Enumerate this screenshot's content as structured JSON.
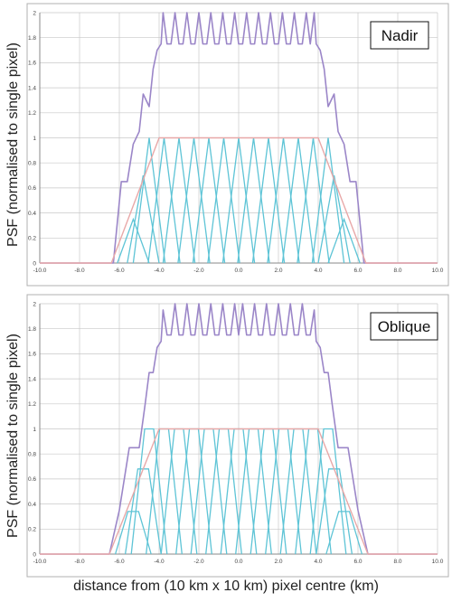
{
  "xlabel": "distance from (10 km x 10 km) pixel centre (km)",
  "ylabel": "PSF (normalised to single pixel)",
  "colors": {
    "sum": "#9b86c8",
    "envelope": "#e8a8a8",
    "footprints": "#5ec4d6",
    "grid": "#c8c8c8",
    "axis": "#888888",
    "frame": "#b0b0b0"
  },
  "chart_data": [
    {
      "type": "line",
      "title": "",
      "annotation": "Nadir",
      "xlim": [
        -10,
        10
      ],
      "ylim": [
        0,
        2
      ],
      "x_ticks": [
        "-10.0",
        "-8.0",
        "-6.0",
        "-4.0",
        "-2.0",
        "0.0",
        "2.0",
        "4.0",
        "6.0",
        "8.0",
        "10.0"
      ],
      "y_ticks": [
        "0",
        "0.2",
        "0.4",
        "0.6",
        "0.8",
        "1",
        "1.2",
        "1.4",
        "1.6",
        "1.8",
        "2"
      ],
      "grid": true,
      "footprint_model": {
        "pixel_centres": [
          -4.5,
          -3.75,
          -3,
          -2.25,
          -1.5,
          -0.75,
          0,
          0.75,
          1.5,
          2.25,
          3,
          3.75,
          4.5
        ],
        "shape": "triangle",
        "half_width": 0.8,
        "edge_factor": 0.35
      },
      "series": [
        {
          "role": "sum",
          "x": [
            -10,
            -6.3,
            -5.9,
            -5.6,
            -5.3,
            -5.0,
            -4.8,
            -4.5,
            -4.3,
            -4.1,
            -3.9,
            -3.8,
            -3.6,
            -3.4,
            -3.2,
            -3.0,
            -2.8,
            -2.6,
            -2.4,
            -2.2,
            -2.0,
            -1.8,
            -1.6,
            -1.4,
            -1.2,
            -1.0,
            -0.8,
            -0.6,
            -0.4,
            -0.2,
            0.0,
            0.2,
            0.4,
            0.6,
            0.8,
            1.0,
            1.2,
            1.4,
            1.6,
            1.8,
            2.0,
            2.2,
            2.4,
            2.6,
            2.8,
            3.0,
            3.2,
            3.4,
            3.6,
            3.8,
            3.9,
            4.1,
            4.3,
            4.5,
            4.8,
            5.0,
            5.3,
            5.6,
            5.9,
            6.3,
            10
          ],
          "y": [
            0,
            0,
            0.65,
            0.65,
            0.95,
            1.05,
            1.35,
            1.25,
            1.55,
            1.7,
            1.75,
            2.0,
            1.75,
            1.75,
            2.0,
            1.75,
            1.75,
            2.0,
            1.75,
            1.75,
            2.0,
            1.75,
            1.75,
            2.0,
            1.75,
            1.75,
            2.0,
            1.75,
            1.75,
            2.0,
            1.75,
            1.75,
            2.0,
            1.75,
            1.75,
            2.0,
            1.75,
            1.75,
            2.0,
            1.75,
            1.75,
            2.0,
            1.75,
            1.75,
            2.0,
            1.75,
            1.75,
            2.0,
            1.75,
            2.0,
            1.75,
            1.7,
            1.55,
            1.25,
            1.35,
            1.05,
            0.95,
            0.65,
            0.65,
            0,
            0
          ]
        },
        {
          "role": "envelope",
          "x": [
            -10,
            -6.4,
            -4.0,
            4.0,
            6.4,
            10
          ],
          "y": [
            0,
            0,
            1,
            1,
            0,
            0
          ]
        }
      ]
    },
    {
      "type": "line",
      "title": "",
      "annotation": "Oblique",
      "xlim": [
        -10,
        10
      ],
      "ylim": [
        0,
        2
      ],
      "x_ticks": [
        "-10.0",
        "-8.0",
        "-6.0",
        "-4.0",
        "-2.0",
        "0.0",
        "2.0",
        "4.0",
        "6.0",
        "8.0",
        "10.0"
      ],
      "y_ticks": [
        "0",
        "0.2",
        "0.4",
        "0.6",
        "0.8",
        "1",
        "1.2",
        "1.4",
        "1.6",
        "1.8",
        "2"
      ],
      "grid": true,
      "footprint_model": {
        "pixel_centres": [
          -4.5,
          -3.75,
          -3,
          -2.25,
          -1.5,
          -0.75,
          0,
          0.75,
          1.5,
          2.25,
          3,
          3.75,
          4.5
        ],
        "shape": "trapezoid",
        "half_width": 0.9,
        "edge_factor": 0.34
      },
      "series": [
        {
          "role": "sum",
          "x": [
            -10,
            -6.5,
            -6.0,
            -5.5,
            -5.0,
            -4.7,
            -4.5,
            -4.3,
            -4.1,
            -3.9,
            -3.8,
            -3.6,
            -3.4,
            -3.2,
            -3.0,
            -2.8,
            -2.6,
            -2.4,
            -2.2,
            -2.0,
            -1.8,
            -1.6,
            -1.4,
            -1.2,
            -1.0,
            -0.8,
            -0.6,
            -0.4,
            -0.2,
            0.0,
            0.2,
            0.4,
            0.6,
            0.8,
            1.0,
            1.2,
            1.4,
            1.6,
            1.8,
            2.0,
            2.2,
            2.4,
            2.6,
            2.8,
            3.0,
            3.2,
            3.4,
            3.6,
            3.8,
            3.9,
            4.1,
            4.3,
            4.5,
            4.7,
            5.0,
            5.5,
            6.0,
            6.5,
            10
          ],
          "y": [
            0,
            0,
            0.35,
            0.85,
            0.85,
            1.2,
            1.45,
            1.45,
            1.65,
            1.7,
            1.95,
            1.75,
            1.75,
            2.0,
            1.75,
            1.75,
            2.0,
            1.75,
            1.75,
            2.0,
            1.75,
            1.75,
            2.0,
            1.75,
            1.75,
            2.0,
            1.75,
            1.75,
            2.0,
            1.75,
            2.0,
            1.75,
            1.75,
            2.0,
            1.75,
            1.75,
            2.0,
            1.75,
            1.75,
            2.0,
            1.75,
            1.75,
            2.0,
            1.75,
            1.75,
            2.0,
            1.75,
            1.75,
            1.95,
            1.7,
            1.65,
            1.45,
            1.45,
            1.2,
            0.85,
            0.85,
            0.35,
            0,
            0
          ]
        },
        {
          "role": "envelope",
          "x": [
            -10,
            -6.5,
            -4.0,
            4.0,
            6.5,
            10
          ],
          "y": [
            0,
            0,
            1,
            1,
            0,
            0
          ]
        }
      ]
    }
  ]
}
